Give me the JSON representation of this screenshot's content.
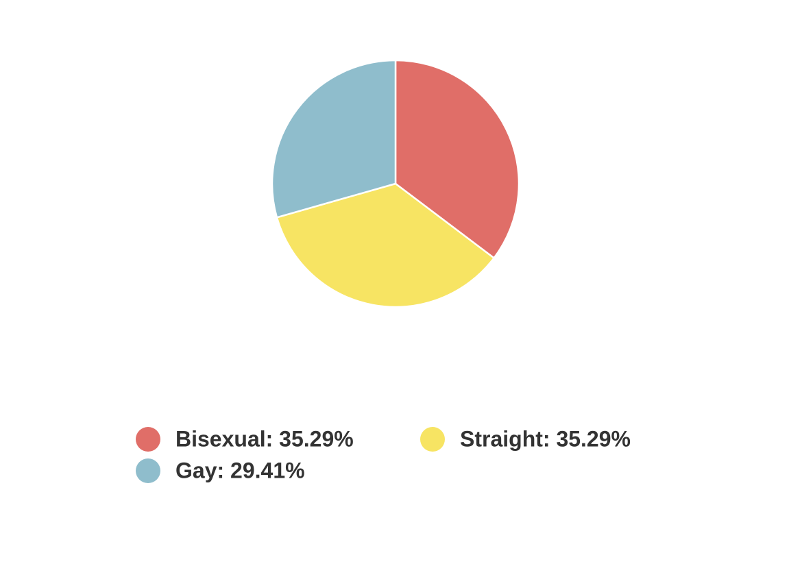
{
  "chart_data": {
    "type": "pie",
    "categories": [
      "Bisexual: 35.29%",
      "Straight: 35.29%",
      "Gay: 29.41%"
    ],
    "values": [
      35.29,
      35.29,
      29.41
    ],
    "colors": [
      "#e06e68",
      "#f7e463",
      "#8fbdcc"
    ],
    "legend": "bottom"
  }
}
